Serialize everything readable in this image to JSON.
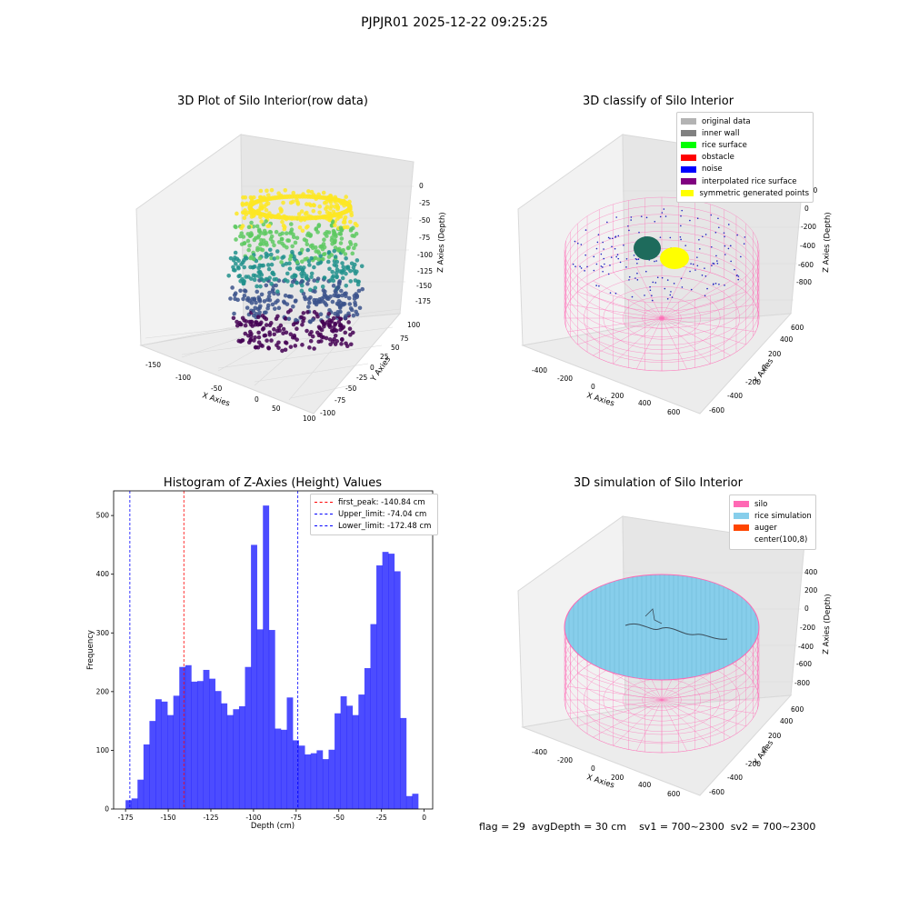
{
  "figure": {
    "suptitle": "PJPJR01 2025-12-22 09:25:25",
    "footer": {
      "flag": "flag = 29",
      "avg_depth": "avgDepth = 30 cm",
      "sv1": "sv1 = 700~2300",
      "sv2": "sv2 = 700~2300"
    }
  },
  "panels": {
    "raw": {
      "title": "3D Plot of Silo Interior(row data)",
      "xlabel": "X Axies",
      "ylabel": "Y Axies",
      "zlabel": "Z Axies (Depth)",
      "xticks": [
        "-150",
        "-100",
        "-50",
        "0",
        "50",
        "100"
      ],
      "yticks": [
        "100",
        "75",
        "50",
        "25",
        "0",
        "-25",
        "-50",
        "-75",
        "-100"
      ],
      "zticks": [
        "0",
        "-25",
        "-50",
        "-75",
        "-100",
        "-125",
        "-150",
        "-175"
      ],
      "colormap": "viridis"
    },
    "classify": {
      "title": "3D classify of Silo Interior",
      "xlabel": "X Axies",
      "ylabel": "Y Axies",
      "zlabel": "Z Axies (Depth)",
      "xticks": [
        "-400",
        "-200",
        "0",
        "200",
        "400",
        "600"
      ],
      "yticks": [
        "600",
        "400",
        "200",
        "0",
        "-200",
        "-400",
        "-600"
      ],
      "zticks": [
        "200",
        "0",
        "-200",
        "-400",
        "-600",
        "-800"
      ],
      "legend": [
        {
          "label": "original data",
          "color": "#b3b3b3"
        },
        {
          "label": "inner wall",
          "color": "#808080"
        },
        {
          "label": "rice surface",
          "color": "#00ff00"
        },
        {
          "label": "obstacle",
          "color": "#ff0000"
        },
        {
          "label": "noise",
          "color": "#0000ff"
        },
        {
          "label": "interpolated rice surface",
          "color": "#800080"
        },
        {
          "label": "symmetric generated points",
          "color": "#ffff00"
        }
      ]
    },
    "simulation": {
      "title": "3D simulation of Silo Interior",
      "xlabel": "X Axies",
      "ylabel": "Y Axies",
      "zlabel": "Z Axies (Depth)",
      "xticks": [
        "-400",
        "-200",
        "0",
        "200",
        "400",
        "600"
      ],
      "yticks": [
        "600",
        "400",
        "200",
        "0",
        "-200",
        "-400",
        "-600"
      ],
      "zticks": [
        "400",
        "200",
        "0",
        "-200",
        "-400",
        "-600",
        "-800"
      ],
      "legend": [
        {
          "label": "silo",
          "color": "#ff69b4"
        },
        {
          "label": "rice simulation",
          "color": "#87ceeb"
        },
        {
          "label": "auger",
          "color": "#ff4500"
        },
        {
          "label": "center(100,8)",
          "color": ""
        }
      ]
    }
  },
  "chart_data": {
    "type": "bar",
    "title": "Histogram of Z-Axies (Height) Values",
    "xlabel": "Depth (cm)",
    "ylabel": "Frequency",
    "xlim": [
      -182,
      5
    ],
    "ylim": [
      0,
      542
    ],
    "xticks": [
      -175,
      -150,
      -125,
      -100,
      -75,
      -50,
      -25,
      0
    ],
    "yticks": [
      0,
      100,
      200,
      300,
      400,
      500
    ],
    "bin_start": -175,
    "bin_width": 3.5,
    "color": "#0000ff",
    "values": [
      15,
      18,
      50,
      110,
      150,
      187,
      183,
      160,
      193,
      242,
      245,
      217,
      218,
      237,
      222,
      201,
      180,
      160,
      170,
      175,
      242,
      450,
      306,
      517,
      305,
      137,
      135,
      190,
      117,
      108,
      93,
      95,
      100,
      85,
      101,
      163,
      192,
      176,
      160,
      195,
      240,
      315,
      415,
      438,
      435,
      405,
      155,
      22,
      26
    ],
    "vlines": [
      {
        "x": -140.84,
        "color": "#ff0000",
        "label": "first_peak: -140.84 cm"
      },
      {
        "x": -74.04,
        "color": "#0000ff",
        "label": "Upper_limit: -74.04 cm"
      },
      {
        "x": -172.48,
        "color": "#0000ff",
        "label": "Lower_limit: -172.48 cm"
      }
    ]
  }
}
